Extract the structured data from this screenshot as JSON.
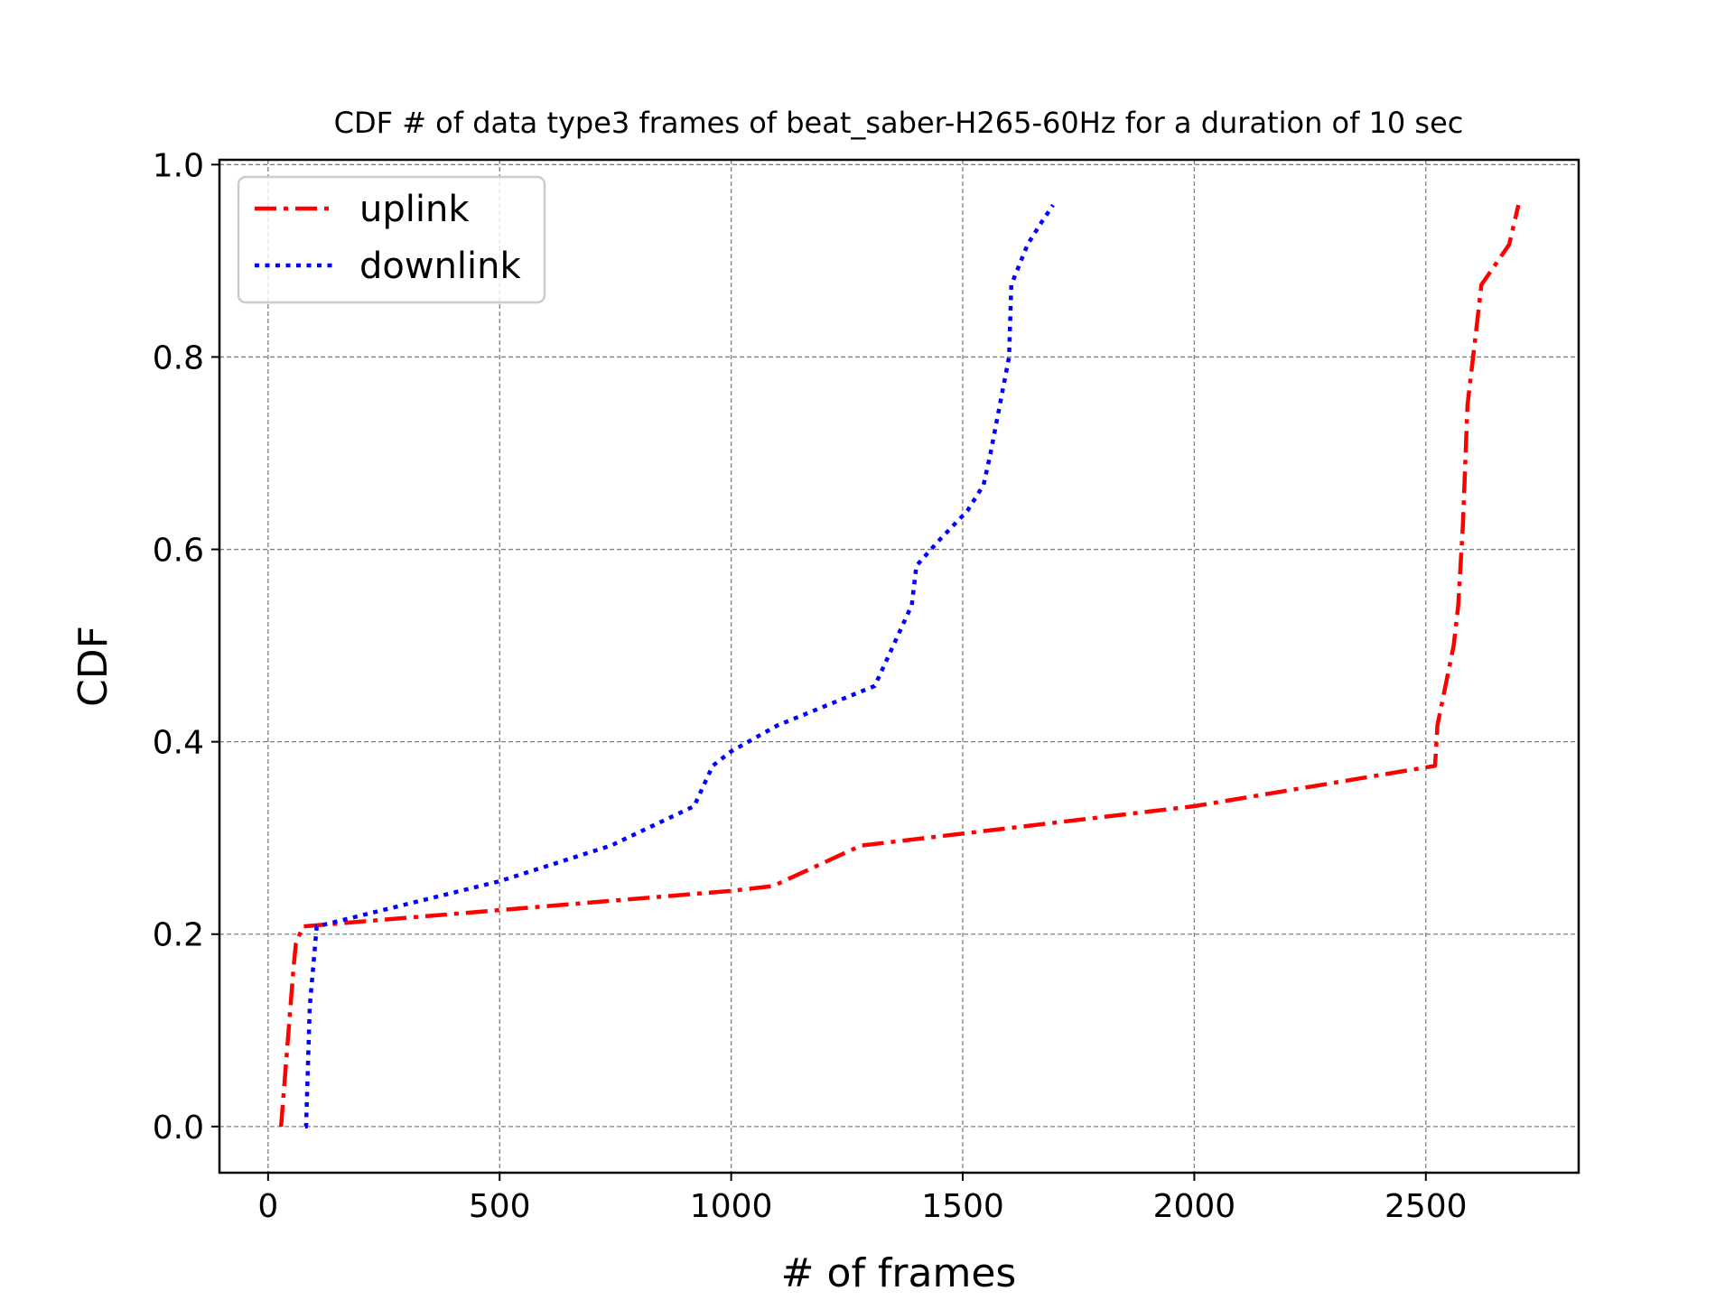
{
  "chart_data": {
    "type": "line",
    "title": "CDF # of data type3 frames of beat_saber-H265-60Hz for a duration of 10 sec",
    "xlabel": "# of frames",
    "ylabel": "CDF",
    "xlim": [
      -105,
      2830
    ],
    "ylim": [
      -0.048,
      1.005
    ],
    "xticks": [
      0,
      500,
      1000,
      1500,
      2000,
      2500
    ],
    "xtick_labels": [
      "0",
      "500",
      "1000",
      "1500",
      "2000",
      "2500"
    ],
    "yticks": [
      0.0,
      0.2,
      0.4,
      0.6,
      0.8,
      1.0
    ],
    "ytick_labels": [
      "0.0",
      "0.2",
      "0.4",
      "0.6",
      "0.8",
      "1.0"
    ],
    "grid": true,
    "legend_position": "top-left",
    "series": [
      {
        "name": "uplink",
        "color": "#ff0000",
        "dash": "dashdot",
        "x": [
          28,
          55,
          60,
          75,
          500,
          1000,
          1090,
          1280,
          2000,
          2520,
          2525,
          2560,
          2570,
          2580,
          2590,
          2610,
          2620,
          2680,
          2700
        ],
        "y": [
          0.0,
          0.165,
          0.19,
          0.208,
          0.225,
          0.245,
          0.25,
          0.292,
          0.333,
          0.375,
          0.417,
          0.5,
          0.542,
          0.625,
          0.75,
          0.833,
          0.875,
          0.917,
          0.958
        ]
      },
      {
        "name": "downlink",
        "color": "#0000ff",
        "dash": "dotted",
        "x": [
          80,
          82,
          90,
          105,
          500,
          740,
          920,
          960,
          1000,
          1100,
          1310,
          1350,
          1390,
          1400,
          1450,
          1510,
          1545,
          1560,
          1600,
          1605,
          1640,
          1670,
          1695
        ],
        "y": [
          0.0,
          0.0,
          0.125,
          0.208,
          0.255,
          0.292,
          0.333,
          0.375,
          0.39,
          0.417,
          0.458,
          0.5,
          0.542,
          0.583,
          0.61,
          0.64,
          0.667,
          0.7,
          0.8,
          0.875,
          0.917,
          0.94,
          0.958
        ]
      }
    ]
  }
}
